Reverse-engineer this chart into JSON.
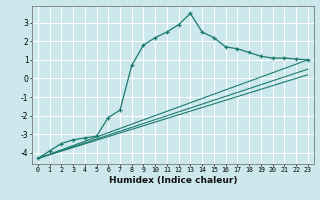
{
  "xlabel": "Humidex (Indice chaleur)",
  "ylabel": "",
  "bg_color": "#cce8ec",
  "grid_color": "#ffffff",
  "line_color": "#1a7a6e",
  "xlim": [
    -0.5,
    23.5
  ],
  "ylim": [
    -4.6,
    3.9
  ],
  "xticks": [
    0,
    1,
    2,
    3,
    4,
    5,
    6,
    7,
    8,
    9,
    10,
    11,
    12,
    13,
    14,
    15,
    16,
    17,
    18,
    19,
    20,
    21,
    22,
    23
  ],
  "yticks": [
    -4,
    -3,
    -2,
    -1,
    0,
    1,
    2,
    3
  ],
  "series": [
    {
      "x": [
        0,
        1,
        2,
        3,
        4,
        5,
        6,
        7,
        8,
        9,
        10,
        11,
        12,
        13,
        14,
        15,
        16,
        17,
        18,
        19,
        20,
        21,
        22,
        23
      ],
      "y": [
        -4.3,
        -3.9,
        -3.5,
        -3.3,
        -3.2,
        -3.1,
        -2.1,
        -1.7,
        0.7,
        1.8,
        2.2,
        2.5,
        2.9,
        3.5,
        2.5,
        2.2,
        1.7,
        1.6,
        1.4,
        1.2,
        1.1,
        1.1,
        1.05,
        1.0
      ]
    },
    {
      "x": [
        0,
        23
      ],
      "y": [
        -4.3,
        1.0
      ]
    },
    {
      "x": [
        0,
        23
      ],
      "y": [
        -4.3,
        0.5
      ]
    },
    {
      "x": [
        0,
        23
      ],
      "y": [
        -4.3,
        0.2
      ]
    }
  ]
}
